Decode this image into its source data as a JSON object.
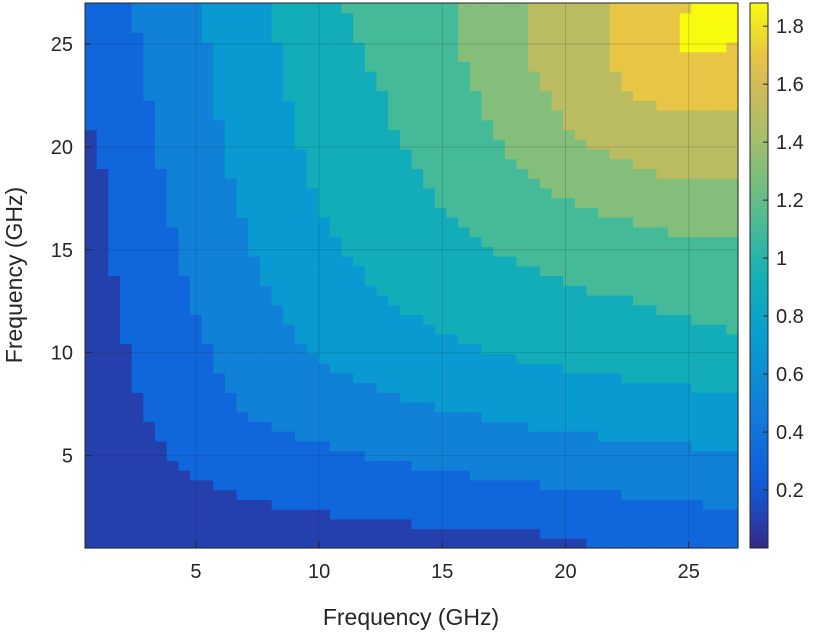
{
  "chart_data": {
    "type": "heatmap",
    "title": "",
    "xlabel": "Frequency (GHz)",
    "ylabel": "Frequency (GHz)",
    "xlim": [
      0.5,
      27
    ],
    "ylim": [
      0.5,
      27
    ],
    "x_ticks": [
      5,
      10,
      15,
      20,
      25
    ],
    "y_ticks": [
      5,
      10,
      15,
      20,
      25
    ],
    "grid": true,
    "plot_style": "filled contour",
    "colormap": "parula",
    "colorbar": {
      "position": "right",
      "range": [
        0,
        1.88
      ],
      "ticks": [
        0.2,
        0.4,
        0.6,
        0.8,
        1,
        1.2,
        1.4,
        1.6,
        1.8
      ],
      "tick_labels": [
        "0.2",
        "0.4",
        "0.6",
        "0.8",
        "1",
        "1.2",
        "1.4",
        "1.6",
        "1.8"
      ]
    },
    "grid_x": [
      1,
      3,
      5,
      7,
      9,
      11,
      13,
      15,
      17,
      19,
      21,
      23,
      25,
      27
    ],
    "grid_y": [
      1,
      3,
      5,
      7,
      9,
      11,
      13,
      15,
      17,
      19,
      21,
      23,
      25,
      27
    ],
    "z": [
      [
        0.0,
        0.02,
        0.05,
        0.08,
        0.1,
        0.12,
        0.14,
        0.15,
        0.16,
        0.18,
        0.2,
        0.22,
        0.25,
        0.3
      ],
      [
        0.02,
        0.1,
        0.15,
        0.2,
        0.24,
        0.27,
        0.3,
        0.32,
        0.34,
        0.36,
        0.38,
        0.4,
        0.42,
        0.45
      ],
      [
        0.05,
        0.15,
        0.25,
        0.3,
        0.35,
        0.38,
        0.42,
        0.45,
        0.48,
        0.5,
        0.52,
        0.54,
        0.56,
        0.58
      ],
      [
        0.08,
        0.2,
        0.3,
        0.4,
        0.45,
        0.5,
        0.55,
        0.58,
        0.62,
        0.65,
        0.68,
        0.7,
        0.72,
        0.74
      ],
      [
        0.1,
        0.24,
        0.35,
        0.45,
        0.55,
        0.6,
        0.65,
        0.7,
        0.75,
        0.78,
        0.8,
        0.82,
        0.84,
        0.86
      ],
      [
        0.12,
        0.27,
        0.38,
        0.5,
        0.6,
        0.7,
        0.75,
        0.8,
        0.85,
        0.88,
        0.9,
        0.95,
        0.98,
        1.0
      ],
      [
        0.14,
        0.3,
        0.42,
        0.55,
        0.65,
        0.75,
        0.82,
        0.88,
        0.92,
        0.95,
        1.0,
        1.02,
        1.05,
        1.06
      ],
      [
        0.15,
        0.32,
        0.45,
        0.58,
        0.7,
        0.8,
        0.88,
        0.95,
        1.0,
        1.05,
        1.1,
        1.12,
        1.15,
        1.15
      ],
      [
        0.16,
        0.34,
        0.48,
        0.62,
        0.75,
        0.85,
        0.92,
        1.0,
        1.08,
        1.15,
        1.2,
        1.25,
        1.3,
        1.3
      ],
      [
        0.18,
        0.36,
        0.5,
        0.65,
        0.78,
        0.88,
        0.95,
        1.05,
        1.15,
        1.25,
        1.35,
        1.4,
        1.45,
        1.45
      ],
      [
        0.2,
        0.38,
        0.52,
        0.68,
        0.8,
        0.9,
        1.0,
        1.1,
        1.2,
        1.35,
        1.45,
        1.5,
        1.55,
        1.55
      ],
      [
        0.22,
        0.4,
        0.54,
        0.7,
        0.82,
        0.95,
        1.02,
        1.12,
        1.25,
        1.4,
        1.5,
        1.65,
        1.7,
        1.7
      ],
      [
        0.25,
        0.42,
        0.56,
        0.72,
        0.84,
        0.98,
        1.05,
        1.15,
        1.3,
        1.45,
        1.55,
        1.7,
        1.85,
        1.8
      ],
      [
        0.3,
        0.45,
        0.58,
        0.74,
        0.86,
        1.0,
        1.06,
        1.15,
        1.3,
        1.45,
        1.55,
        1.7,
        1.8,
        1.82
      ]
    ]
  }
}
